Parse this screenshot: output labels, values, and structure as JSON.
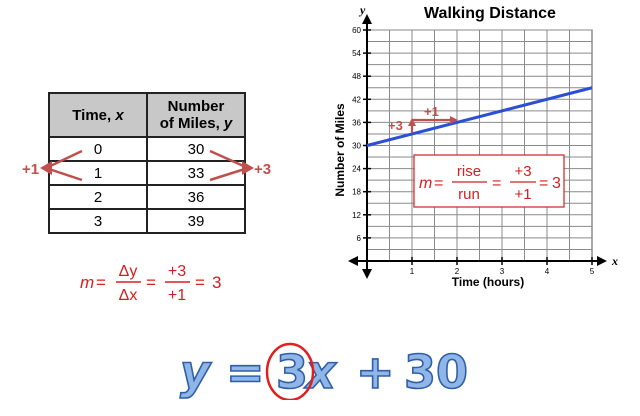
{
  "table": {
    "headers": [
      "Time, x",
      "Number of Miles, y"
    ],
    "header_lines": [
      [
        "Time, ",
        "x"
      ],
      [
        "Number",
        "of Miles, ",
        "y"
      ]
    ],
    "rows": [
      [
        "0",
        "30"
      ],
      [
        "1",
        "33"
      ],
      [
        "2",
        "36"
      ],
      [
        "3",
        "39"
      ]
    ],
    "left_annotation": "+1",
    "right_annotation": "+3"
  },
  "table_formula": {
    "m": "m",
    "equals": "=",
    "num1": "Δy",
    "den1": "Δx",
    "num2": "+3",
    "den2": "+1",
    "result": "3"
  },
  "chart_data": {
    "type": "line",
    "title": "Walking Distance",
    "xlabel": "Time (hours)",
    "ylabel": "Number of Miles",
    "x_axis_letter": "x",
    "y_axis_letter": "y",
    "xlim": [
      0,
      5
    ],
    "ylim": [
      0,
      60
    ],
    "x_ticks": [
      1,
      2,
      3,
      4,
      5
    ],
    "y_ticks": [
      6,
      12,
      18,
      24,
      30,
      36,
      42,
      48,
      54,
      60
    ],
    "grid": true,
    "series": [
      {
        "x": [
          0,
          5
        ],
        "y": [
          30,
          45
        ],
        "color": "#2a4fd4"
      }
    ],
    "annotations": {
      "rise_label": "+3",
      "run_label": "+1"
    },
    "slope_box": {
      "m": "m",
      "equals": "=",
      "num1": "rise",
      "den1": "run",
      "num2": "+3",
      "den2": "+1",
      "result": "3"
    }
  },
  "equation": {
    "y": "y",
    "eq": "=",
    "slope": "3",
    "x": "x",
    "plus": "+",
    "intercept": "30"
  },
  "colors": {
    "accent_red": "#d32020",
    "arrow_red": "#c0504d",
    "line_blue": "#2a4fd4",
    "equation_blue": "#8fb6e6"
  }
}
